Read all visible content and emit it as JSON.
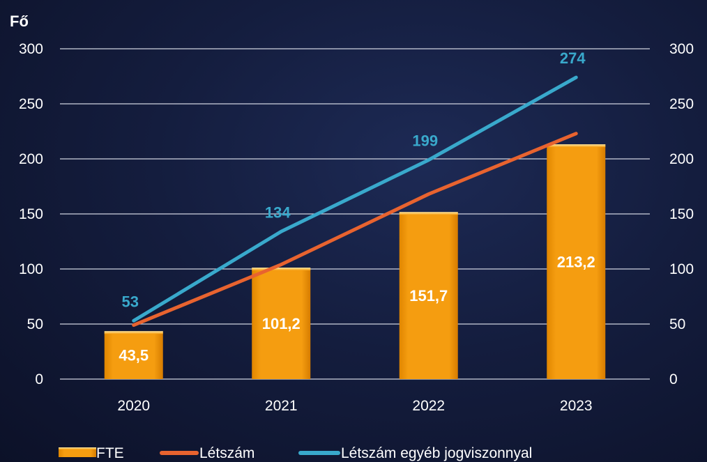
{
  "chart_data": {
    "type": "bar",
    "unit_label": "Fő",
    "categories": [
      "2020",
      "2021",
      "2022",
      "2023"
    ],
    "ylim": [
      0,
      300
    ],
    "y_ticks": [
      "0",
      "50",
      "100",
      "150",
      "200",
      "250",
      "300"
    ],
    "grid": true,
    "legend_position": "bottom",
    "series": [
      {
        "name": "FTE",
        "kind": "bar",
        "values": [
          43.5,
          101.2,
          151.7,
          213.2
        ],
        "labels": [
          "43,5",
          "101,2",
          "151,7",
          "213,2"
        ],
        "color": "#f39a0b"
      },
      {
        "name": "Létszám",
        "kind": "line",
        "values": [
          49,
          104,
          168,
          223
        ],
        "color": "#e8632f"
      },
      {
        "name": "Létszám egyéb jogviszonnyal",
        "kind": "line",
        "values": [
          53,
          134,
          199,
          274
        ],
        "labels": [
          "53",
          "134",
          "199",
          "274"
        ],
        "color": "#39a9cc"
      }
    ]
  }
}
